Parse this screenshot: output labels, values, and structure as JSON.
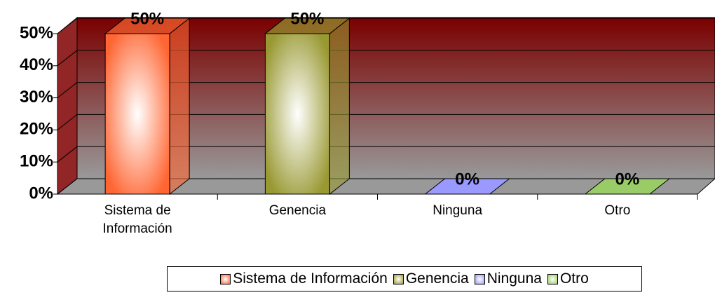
{
  "chart_data": {
    "type": "bar3d",
    "categories": [
      "Sistema de Información",
      "Genencia",
      "Ninguna",
      "Otro"
    ],
    "values": [
      50,
      50,
      0,
      0
    ],
    "value_labels": [
      "50%",
      "50%",
      "0%",
      "0%"
    ],
    "colors": [
      "#ff6633",
      "#999933",
      "#9999ff",
      "#99cc66"
    ],
    "ylim": [
      0,
      50
    ],
    "yticks": [
      {
        "value": 0,
        "label": "0%"
      },
      {
        "value": 10,
        "label": "10%"
      },
      {
        "value": 20,
        "label": "20%"
      },
      {
        "value": 30,
        "label": "30%"
      },
      {
        "value": 40,
        "label": "40%"
      },
      {
        "value": 50,
        "label": "50%"
      }
    ],
    "grid": true,
    "legend": "bottom"
  }
}
